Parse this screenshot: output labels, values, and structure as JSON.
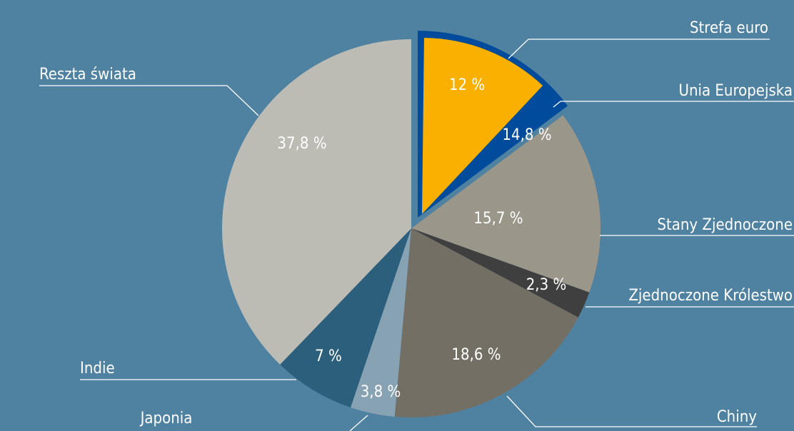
{
  "chart_data": {
    "type": "pie",
    "categories": [
      "Unia Europejska",
      "Stany Zjednoczone",
      "Zjednoczone Królestwo",
      "Chiny",
      "Japonia",
      "Indie",
      "Reszta świata"
    ],
    "values": [
      14.8,
      15.7,
      2.3,
      18.6,
      3.8,
      7,
      37.8
    ],
    "value_labels": [
      "14,8 %",
      "15,7 %",
      "2,3 %",
      "18,6 %",
      "3,8 %",
      "7 %",
      "37,8 %"
    ],
    "colors": [
      "#004b9b",
      "#9b968a",
      "#3f3f3f",
      "#746f65",
      "#87a2b2",
      "#2c5f7c",
      "#bcbcb5"
    ],
    "inner_slice": {
      "name": "Strefa euro",
      "value": 12,
      "value_label": "12 %",
      "color": "#f9b000"
    }
  }
}
